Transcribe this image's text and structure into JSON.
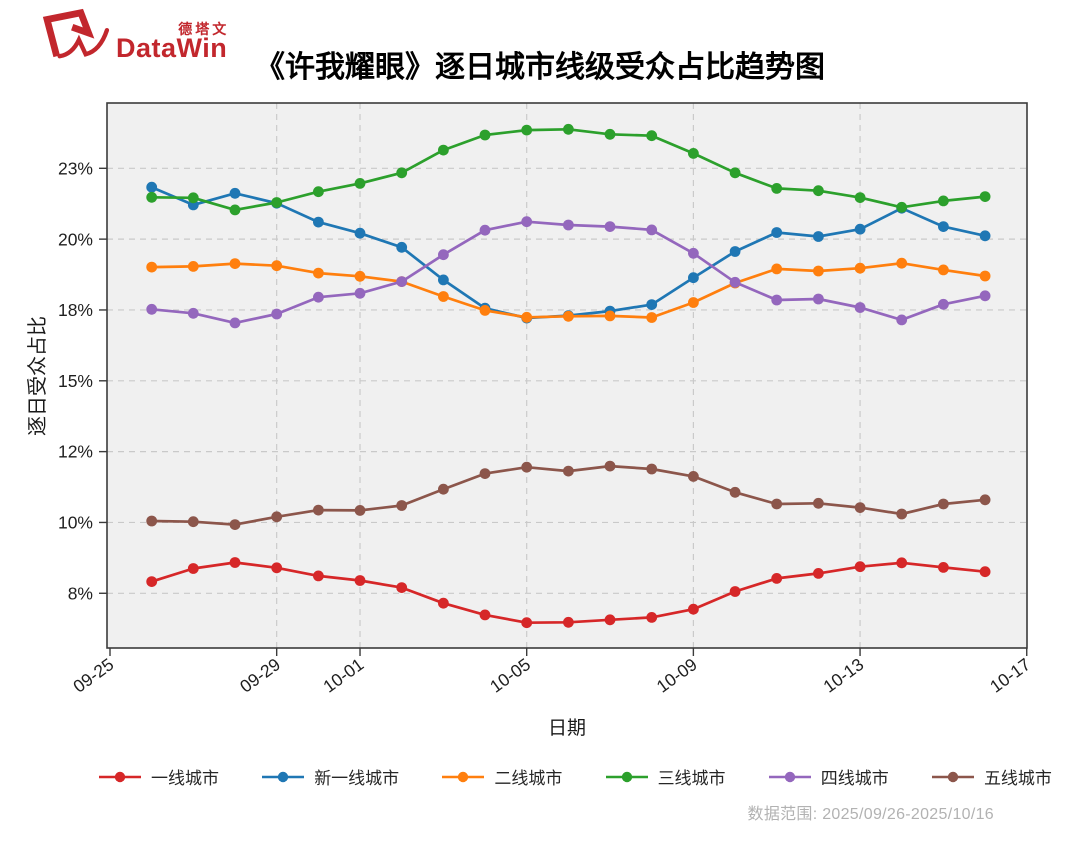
{
  "header": {
    "logo": {
      "brand_cn": "德塔文",
      "brand_en": "DataWin",
      "color": "#c2272d"
    }
  },
  "footer": {
    "data_range": "数据范围: 2025/09/26-2025/10/16"
  },
  "chart_data": {
    "type": "line",
    "title": "《许我耀眼》逐日城市线级受众占比趋势图",
    "xlabel": "日期",
    "ylabel": "逐日受众占比",
    "grid": "dashed",
    "legend_position": "bottom",
    "plot_bg": "#f0f0f0",
    "grid_color": "#c9c9c9",
    "axis_color": "#3b3b3b",
    "x_tick_labels": [
      "09-25",
      "09-29",
      "10-01",
      "10-05",
      "10-09",
      "10-13",
      "10-17"
    ],
    "x_tick_days": [
      0,
      4,
      6,
      10,
      14,
      18,
      22
    ],
    "y_tick_labels": [
      "23%",
      "20%",
      "18%",
      "15%",
      "12%",
      "10%",
      "8%"
    ],
    "y_tick_values": [
      23,
      20,
      18,
      15,
      12,
      10,
      8
    ],
    "dates": [
      "09-26",
      "09-27",
      "09-28",
      "09-29",
      "09-30",
      "10-01",
      "10-02",
      "10-03",
      "10-04",
      "10-05",
      "10-06",
      "10-07",
      "10-08",
      "10-09",
      "10-10",
      "10-11",
      "10-12",
      "10-13",
      "10-14",
      "10-15",
      "10-16"
    ],
    "series": [
      {
        "key": "tier1",
        "name": "一线城市",
        "color": "#d62728",
        "values": [
          8.33,
          8.7,
          8.87,
          8.72,
          8.49,
          8.36,
          8.16,
          7.72,
          7.39,
          7.17,
          7.18,
          7.25,
          7.32,
          7.55,
          8.05,
          8.42,
          8.56,
          8.75,
          8.86,
          8.73,
          8.61
        ]
      },
      {
        "key": "new-tier1",
        "name": "新一线城市",
        "color": "#1f77b4",
        "values": [
          22.2,
          21.45,
          21.94,
          21.52,
          20.72,
          20.25,
          19.77,
          18.85,
          18.05,
          17.66,
          17.76,
          17.95,
          18.15,
          18.91,
          19.65,
          20.28,
          20.11,
          20.42,
          21.31,
          20.53,
          20.14
        ]
      },
      {
        "key": "tier2",
        "name": "二线城市",
        "color": "#ff7f0e",
        "values": [
          19.21,
          19.23,
          19.31,
          19.25,
          19.04,
          18.95,
          18.8,
          18.38,
          17.98,
          17.69,
          17.73,
          17.75,
          17.68,
          18.21,
          18.76,
          19.16,
          19.1,
          19.18,
          19.32,
          19.13,
          18.96
        ]
      },
      {
        "key": "tier3",
        "name": "三线城市",
        "color": "#2ca02c",
        "values": [
          21.77,
          21.75,
          21.24,
          21.55,
          22.01,
          22.36,
          22.81,
          23.77,
          24.41,
          24.62,
          24.65,
          24.44,
          24.38,
          23.63,
          22.81,
          22.15,
          22.05,
          21.76,
          21.35,
          21.62,
          21.8
        ]
      },
      {
        "key": "tier4",
        "name": "四线城市",
        "color": "#9467bd",
        "values": [
          18.02,
          17.86,
          17.45,
          17.83,
          18.36,
          18.47,
          18.8,
          19.56,
          20.38,
          20.74,
          20.6,
          20.53,
          20.39,
          19.6,
          18.78,
          18.28,
          18.31,
          18.07,
          17.58,
          18.16,
          18.4
        ]
      },
      {
        "key": "tier5",
        "name": "五线城市",
        "color": "#8c564b",
        "values": [
          10.04,
          10.02,
          9.94,
          10.16,
          10.35,
          10.34,
          10.48,
          10.94,
          11.38,
          11.56,
          11.45,
          11.59,
          11.51,
          11.3,
          10.85,
          10.52,
          10.54,
          10.42,
          10.24,
          10.52,
          10.64
        ]
      }
    ]
  }
}
